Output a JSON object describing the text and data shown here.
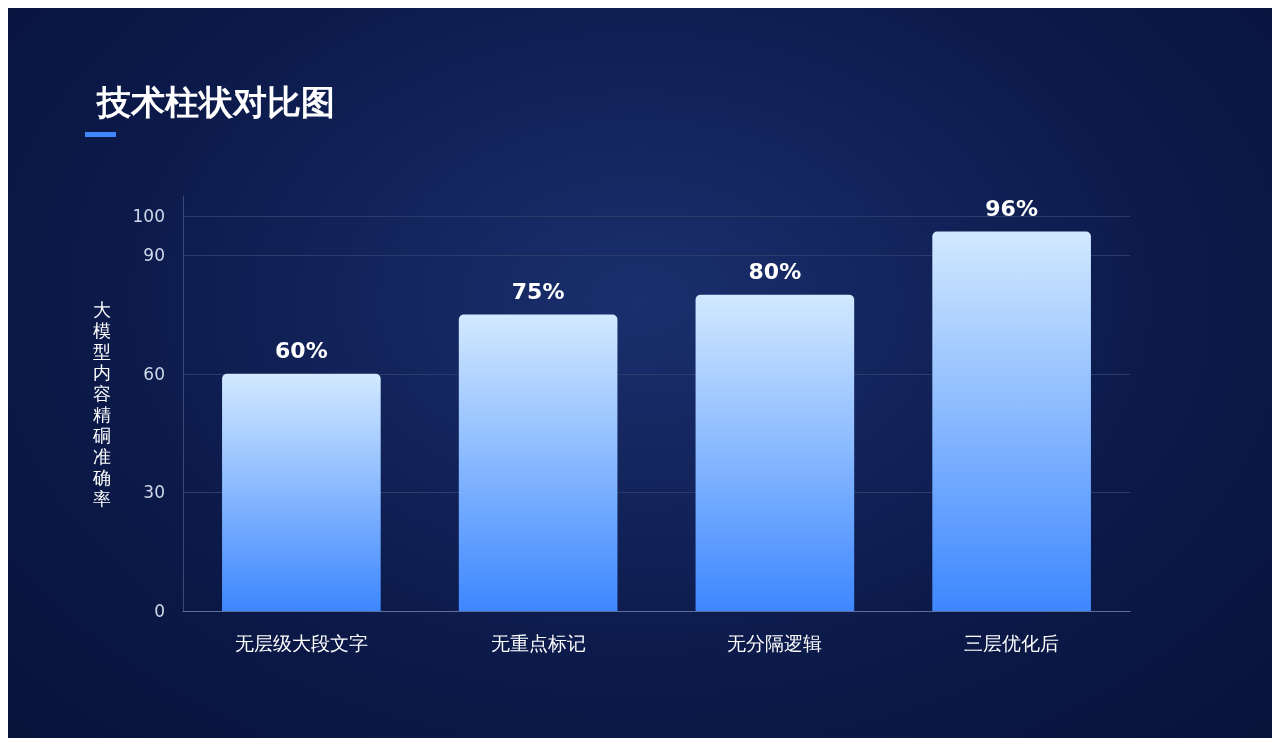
{
  "chart_data": {
    "type": "bar",
    "title": "技术柱状对比图",
    "ylabel": "大模型内容精硐准确率",
    "categories": [
      "无层级大段文字",
      "无重点标记",
      "无分隔逻辑",
      "三层优化后"
    ],
    "values": [
      60,
      75,
      80,
      96
    ],
    "value_labels": [
      "60%",
      "75%",
      "80%",
      "96%"
    ],
    "color": "#3d87ff",
    "ylim": [
      0,
      105
    ],
    "yticks": [
      0,
      30,
      60,
      90,
      100
    ],
    "grid": "y"
  }
}
